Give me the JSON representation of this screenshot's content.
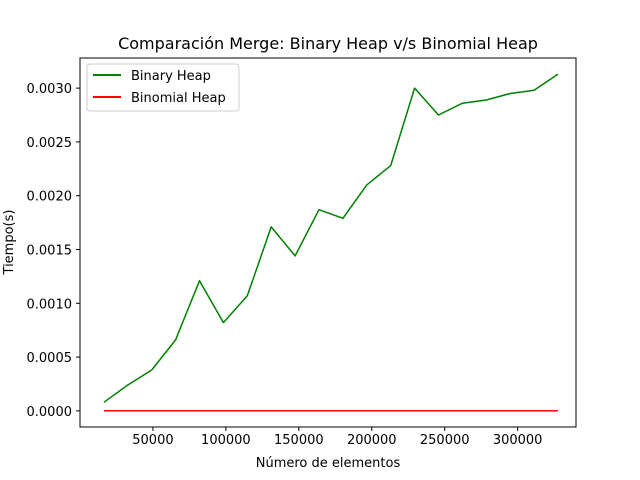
{
  "chart_data": {
    "type": "line",
    "title": "Comparación Merge: Binary Heap v/s Binomial Heap",
    "xlabel": "Número de elementos",
    "ylabel": "Tiempo(s)",
    "xlim": [
      0,
      340000
    ],
    "ylim": [
      -0.00015,
      0.00328
    ],
    "x_ticks": [
      50000,
      100000,
      150000,
      200000,
      250000,
      300000
    ],
    "x_tick_labels": [
      "50000",
      "100000",
      "150000",
      "200000",
      "250000",
      "300000"
    ],
    "y_ticks": [
      0,
      0.0005,
      0.001,
      0.0015,
      0.002,
      0.0025,
      0.003
    ],
    "y_tick_labels": [
      "0.0000",
      "0.0005",
      "0.0010",
      "0.0015",
      "0.0020",
      "0.0025",
      "0.0030"
    ],
    "grid": false,
    "legend_position": "top-left",
    "x": [
      16384,
      32768,
      49152,
      65536,
      81920,
      98304,
      114688,
      131072,
      147456,
      163840,
      180224,
      196608,
      212992,
      229376,
      245760,
      262144,
      278528,
      294912,
      311296,
      327680
    ],
    "series": [
      {
        "name": "Binary Heap",
        "color": "#008000",
        "values": [
          8e-05,
          0.00024,
          0.00038,
          0.00066,
          0.00121,
          0.00082,
          0.00107,
          0.00171,
          0.00144,
          0.00187,
          0.00179,
          0.0021,
          0.00228,
          0.003,
          0.00275,
          0.00286,
          0.00289,
          0.00295,
          0.00298,
          0.00313
        ]
      },
      {
        "name": "Binomial Heap",
        "color": "#ff0000",
        "values": [
          3e-07,
          3e-07,
          3e-07,
          3e-07,
          3e-07,
          3e-07,
          3e-07,
          3e-07,
          3e-07,
          3e-07,
          3e-07,
          3e-07,
          3e-07,
          3e-07,
          3e-07,
          3e-07,
          3e-07,
          3e-07,
          3e-07,
          3e-07
        ]
      }
    ]
  }
}
